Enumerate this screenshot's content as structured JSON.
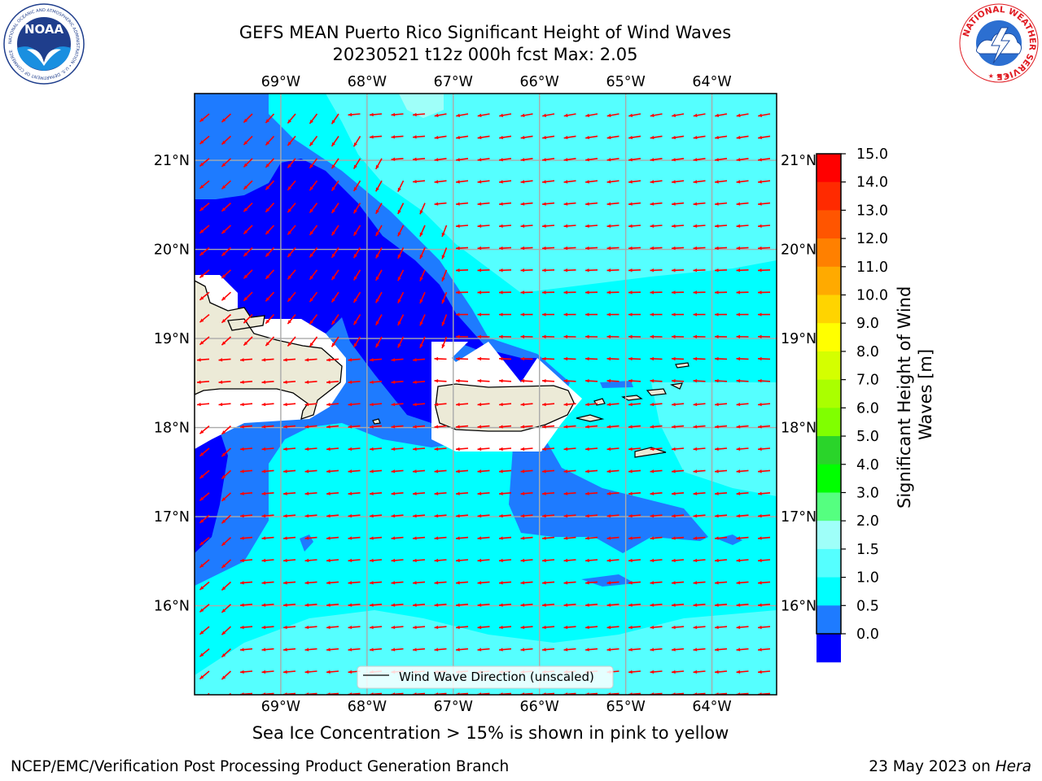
{
  "header": {
    "title_line1": "GEFS MEAN Puerto Rico Significant Height of Wind Waves",
    "title_line2": "20230521 t12z 000h fcst   Max: 2.05"
  },
  "map": {
    "lon_ticks": [
      "69°W",
      "68°W",
      "67°W",
      "66°W",
      "65°W",
      "64°W"
    ],
    "lat_ticks": [
      "21°N",
      "20°N",
      "19°N",
      "18°N",
      "17°N",
      "16°N"
    ],
    "lon_values": [
      -69,
      -68,
      -67,
      -66,
      -65,
      -64
    ],
    "lat_values": [
      21,
      20,
      19,
      18,
      17,
      16
    ],
    "lon_range": [
      -70,
      -63.25
    ],
    "lat_range": [
      15,
      21.75
    ],
    "legend_label": "Wind Wave Direction (unscaled)",
    "field_colors": {
      "very_low": "#0000ff",
      "low": "#1e7bff",
      "mid": "#00ffff",
      "high": "#55ffff",
      "higher": "#9ffff9",
      "land": "#ecead7",
      "missing": "#ffffff",
      "arrows": "#ff0000"
    }
  },
  "colorbar": {
    "label": "Significant Height of Wind Waves [m]",
    "label_line1": "Significant Height of Wind",
    "label_line2": "Waves [m]",
    "ticks": [
      "15.0",
      "14.0",
      "13.0",
      "12.0",
      "11.0",
      "10.0",
      "9.0",
      "8.0",
      "7.0",
      "6.0",
      "5.0",
      "4.0",
      "3.0",
      "2.0",
      "1.5",
      "1.0",
      "0.5",
      "0.0"
    ],
    "colors_top_to_bottom": [
      "#ff0000",
      "#ff2a00",
      "#ff5500",
      "#ff8000",
      "#ffaa00",
      "#ffd400",
      "#ffff00",
      "#d4ff00",
      "#aaff00",
      "#80ff00",
      "#2ad42a",
      "#00ff00",
      "#55ff80",
      "#9ffff9",
      "#55ffff",
      "#00ffff",
      "#1e7bff",
      "#0000ff"
    ]
  },
  "footer": {
    "caption": "Sea Ice Concentration > 15% is shown in pink to yellow",
    "left": "NCEP/EMC/Verification Post Processing Product Generation Branch",
    "date": "23 May 2023 on",
    "host": "Hera"
  },
  "logos": {
    "left": "noaa-logo",
    "left_ring_text": "NATIONAL OCEANIC AND ATMOSPHERIC ADMINISTRATION • U.S. DEPARTMENT OF COMMERCE",
    "left_center_text": "NOAA",
    "right": "national-weather-service-logo",
    "right_ring_text": "NATIONAL WEATHER SERVICE"
  }
}
